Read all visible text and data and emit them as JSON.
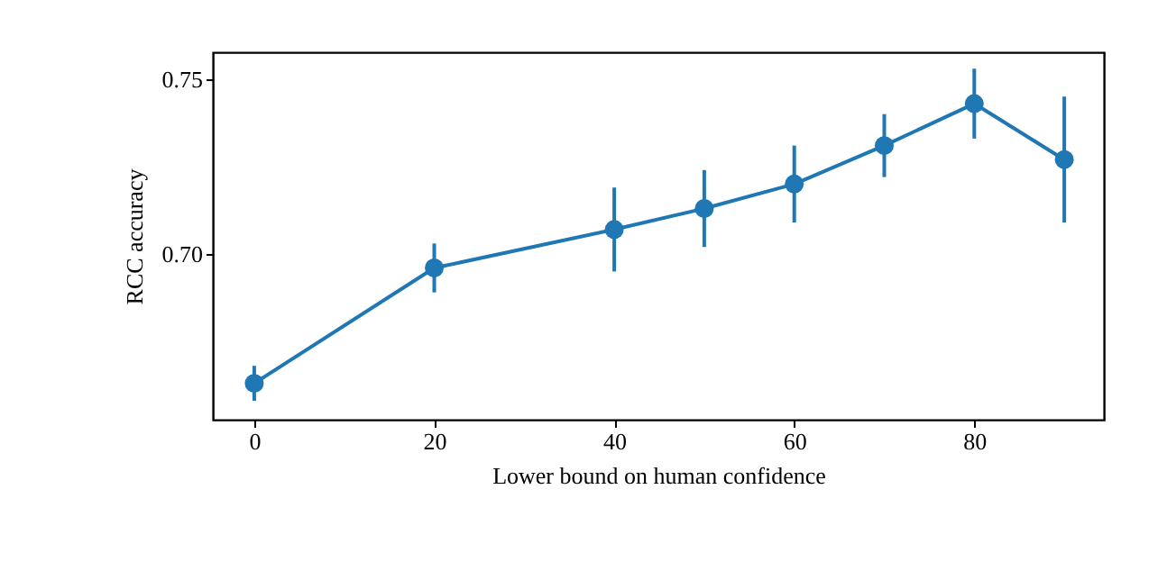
{
  "chart_data": {
    "type": "line",
    "xlabel": "Lower bound on human confidence",
    "ylabel": "RCC accuracy",
    "x": [
      0,
      20,
      40,
      50,
      60,
      70,
      80,
      90
    ],
    "series": [
      {
        "color": "#1f77b4",
        "values": [
          0.663,
          0.696,
          0.707,
          0.713,
          0.72,
          0.731,
          0.743,
          0.727
        ],
        "errors": [
          0.005,
          0.007,
          0.012,
          0.011,
          0.011,
          0.009,
          0.01,
          0.018
        ]
      }
    ],
    "xlim": [
      -4.6,
      94.4
    ],
    "xticks": [
      0,
      20,
      40,
      60,
      80
    ],
    "ylim": [
      0.6526,
      0.7577
    ],
    "yticks": [
      {
        "value": 0.7,
        "label": "0.70"
      },
      {
        "value": 0.75,
        "label": "0.75"
      }
    ],
    "marker": "circle",
    "grid": false
  }
}
